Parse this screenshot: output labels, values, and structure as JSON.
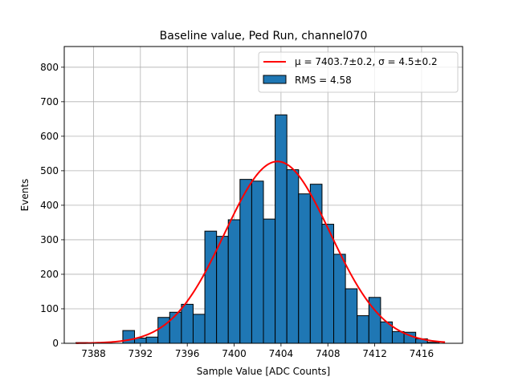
{
  "chart_data": {
    "type": "bar",
    "title": "Baseline value, Ped Run, channel070",
    "xlabel": "Sample Value [ADC Counts]",
    "ylabel": "Events",
    "xlim": [
      7385.5,
      7419.5
    ],
    "ylim": [
      0,
      860
    ],
    "xticks": [
      "7388",
      "7392",
      "7396",
      "7400",
      "7404",
      "7408",
      "7412",
      "7416"
    ],
    "yticks": [
      "0",
      "100",
      "200",
      "300",
      "400",
      "500",
      "600",
      "700",
      "800"
    ],
    "grid": true,
    "legend_position": "top-right",
    "bin_width": 1,
    "bins": [
      {
        "x": 7387,
        "value": 2
      },
      {
        "x": 7391,
        "value": 37
      },
      {
        "x": 7392,
        "value": 15
      },
      {
        "x": 7393,
        "value": 18
      },
      {
        "x": 7394,
        "value": 75
      },
      {
        "x": 7395,
        "value": 90
      },
      {
        "x": 7396,
        "value": 113
      },
      {
        "x": 7397,
        "value": 84
      },
      {
        "x": 7398,
        "value": 325
      },
      {
        "x": 7399,
        "value": 310
      },
      {
        "x": 7400,
        "value": 358
      },
      {
        "x": 7401,
        "value": 475
      },
      {
        "x": 7402,
        "value": 470
      },
      {
        "x": 7403,
        "value": 360
      },
      {
        "x": 7404,
        "value": 662
      },
      {
        "x": 7405,
        "value": 503
      },
      {
        "x": 7406,
        "value": 433
      },
      {
        "x": 7407,
        "value": 461
      },
      {
        "x": 7408,
        "value": 345
      },
      {
        "x": 7409,
        "value": 258
      },
      {
        "x": 7410,
        "value": 158
      },
      {
        "x": 7411,
        "value": 80
      },
      {
        "x": 7412,
        "value": 133
      },
      {
        "x": 7413,
        "value": 62
      },
      {
        "x": 7414,
        "value": 34
      },
      {
        "x": 7415,
        "value": 32
      },
      {
        "x": 7416,
        "value": 13
      },
      {
        "x": 7417,
        "value": 3
      }
    ],
    "fit": {
      "mu": 7403.7,
      "sigma": 4.5,
      "amplitude": 527,
      "x_range": [
        7386.5,
        7418
      ]
    },
    "legend": [
      {
        "label": "μ = 7403.7±0.2, σ = 4.5±0.2",
        "color": "#ff0000",
        "kind": "line"
      },
      {
        "label": "RMS = 4.58",
        "color": "#1f77b4",
        "kind": "patch"
      }
    ],
    "colors": {
      "bar_fill": "#1f77b4",
      "bar_edge": "#000000",
      "fit_line": "#ff0000",
      "grid": "#b0b0b0"
    }
  }
}
